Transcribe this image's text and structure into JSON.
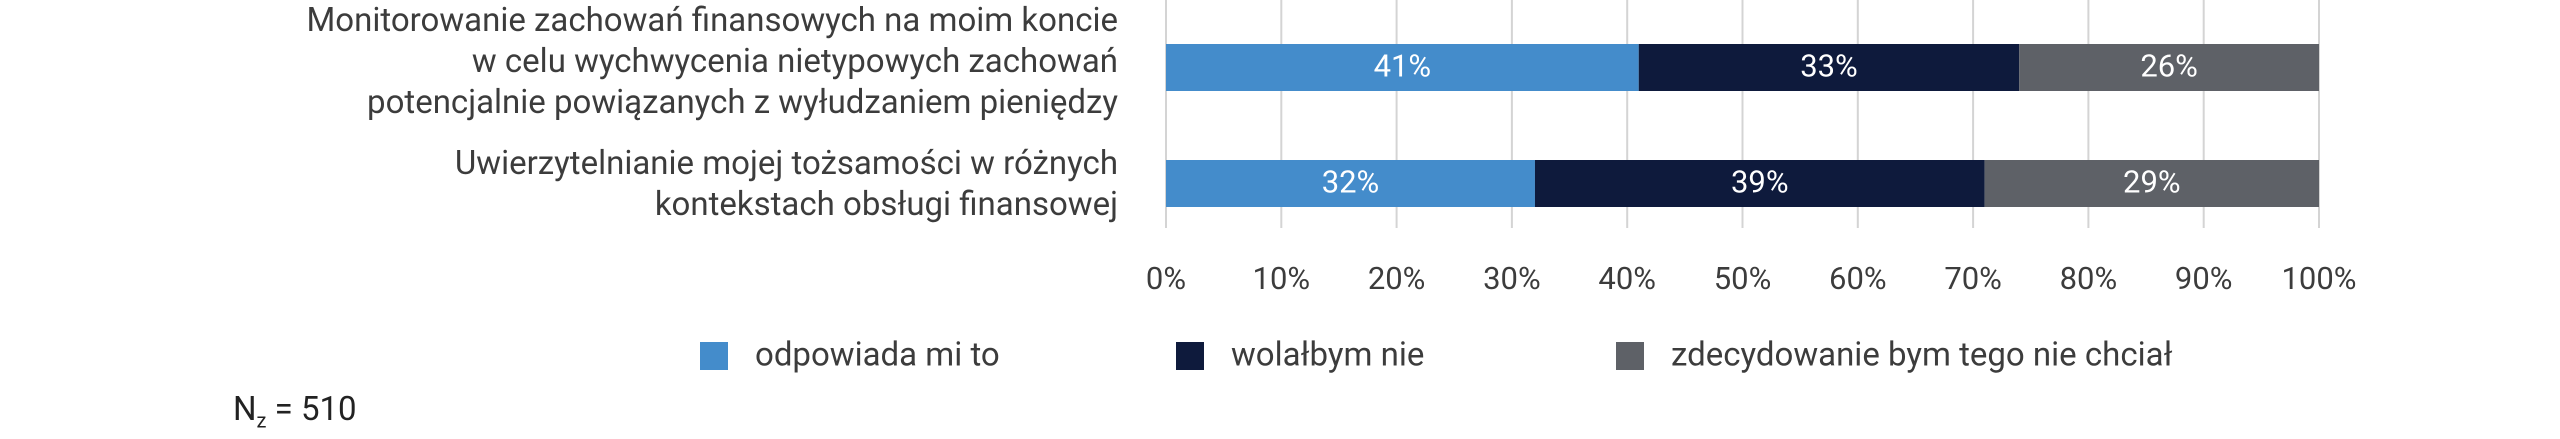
{
  "chart_data": {
    "type": "stacked-barh",
    "categories": [
      "Monitorowanie zachowań finansowych na moim koncie\nw celu wychwycenia nietypowych zachowań\npotencjalnie powiązanych z wyłudzaniem pieniędzy",
      "Uwierzytelnianie mojej tożsamości w różnych\nkontekstach obsługi finansowej"
    ],
    "series": [
      {
        "name": "odpowiada mi to",
        "color": "#448ccb",
        "values": [
          41,
          32
        ],
        "value_labels": [
          "41%",
          "32%"
        ]
      },
      {
        "name": "wolałbym nie",
        "color": "#0e1a3c",
        "values": [
          33,
          39
        ],
        "value_labels": [
          "33%",
          "39%"
        ]
      },
      {
        "name": "zdecydowanie bym tego nie chciał",
        "color": "#5e6167",
        "values": [
          26,
          29
        ],
        "value_labels": [
          "26%",
          "29%"
        ]
      }
    ],
    "xlim": [
      0,
      100
    ],
    "xticks": [
      {
        "value": 0,
        "label": "0%"
      },
      {
        "value": 10,
        "label": "10%"
      },
      {
        "value": 20,
        "label": "20%"
      },
      {
        "value": 30,
        "label": "30%"
      },
      {
        "value": 40,
        "label": "40%"
      },
      {
        "value": 50,
        "label": "50%"
      },
      {
        "value": 60,
        "label": "60%"
      },
      {
        "value": 70,
        "label": "70%"
      },
      {
        "value": 80,
        "label": "80%"
      },
      {
        "value": 90,
        "label": "90%"
      },
      {
        "value": 100,
        "label": "100%"
      }
    ],
    "grid": true,
    "legend": "bottom",
    "note": {
      "main": "N",
      "sub": "z",
      "rest": " = 510"
    }
  }
}
